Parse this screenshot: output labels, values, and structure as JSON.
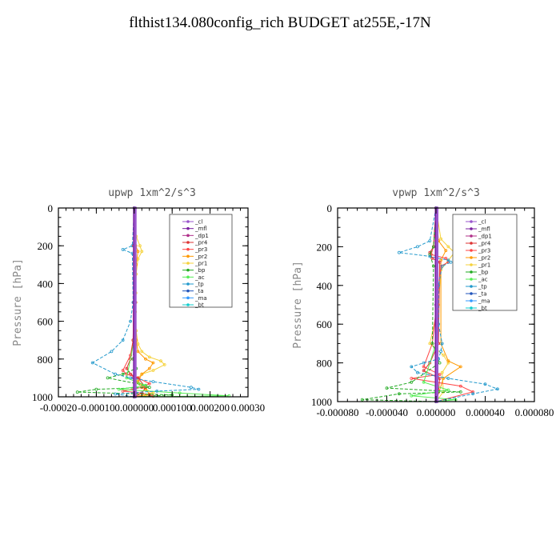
{
  "title": "flthist134.080config_rich  BUDGET at255E,-17N",
  "legend_entries": [
    "_cl",
    "_mfl",
    "_dp1",
    "_pr4",
    "_pr3",
    "_pr2",
    "_pr1",
    "_bp",
    "_ac",
    "_tp",
    "_ta",
    "_ma",
    "_bt"
  ],
  "series_colors": {
    "_cl": "#9955cc",
    "_mfl": "#7a1fa0",
    "_dp1": "#b0308a",
    "_pr4": "#dd3333",
    "_pr3": "#ff4444",
    "_pr2": "#ff9900",
    "_pr1": "#f5d23c",
    "_bp": "#22aa22",
    "_ac": "#55ee55",
    "_tp": "#2299cc",
    "_ta": "#2255bb",
    "_ma": "#3399ff",
    "_bt": "#11cccc"
  },
  "chart_data": [
    {
      "type": "line",
      "title": "upwp   1xm^2/s^3",
      "ylabel": "Pressure [hPa]",
      "xlabel": "",
      "ylim": [
        1000,
        0
      ],
      "xlim": [
        -0.0002,
        0.0003
      ],
      "xticks": [
        -0.0002,
        -0.0001,
        0.0,
        0.0001,
        0.0002,
        0.0003
      ],
      "xtick_labels": [
        "-0.00020",
        "-0.00010",
        "0.000000",
        "0.000100",
        "0.000200",
        "0.00030"
      ],
      "yticks": [
        0,
        200,
        400,
        600,
        800,
        1000
      ],
      "ytick_labels": [
        "0",
        "200",
        "400",
        "600",
        "800",
        "1000"
      ],
      "grid": false,
      "legend": "top-right",
      "series": [
        {
          "name": "_pr1",
          "x": [
            0,
            5e-06,
            1.5e-05,
            2e-05,
            1e-05,
            5e-06,
            4e-06,
            3e-06,
            5e-06,
            1e-05,
            2e-05,
            4e-05,
            7e-05,
            8e-05,
            5e-05,
            2e-05,
            1e-05,
            5e-06,
            2e-05,
            5e-05,
            3e-05,
            0
          ],
          "y": [
            0,
            150,
            200,
            230,
            270,
            350,
            450,
            550,
            650,
            720,
            760,
            790,
            810,
            830,
            860,
            880,
            900,
            920,
            950,
            980,
            995,
            1000
          ]
        },
        {
          "name": "_pr2",
          "x": [
            0,
            4e-06,
            1e-05,
            5e-06,
            4e-06,
            5e-06,
            1e-05,
            3e-05,
            5e-05,
            4e-05,
            2e-05,
            1e-05,
            3e-05,
            4e-05,
            0
          ],
          "y": [
            0,
            200,
            230,
            300,
            500,
            700,
            760,
            800,
            820,
            850,
            880,
            920,
            960,
            985,
            1000
          ]
        },
        {
          "name": "_pr3",
          "x": [
            0,
            -2e-06,
            -2e-06,
            -3e-06,
            -1e-05,
            -3e-05,
            -2e-05,
            1e-05,
            4e-05,
            2e-05,
            -3e-05,
            2e-05,
            4e-05,
            5e-05,
            0
          ],
          "y": [
            0,
            200,
            500,
            700,
            780,
            860,
            880,
            900,
            930,
            950,
            970,
            980,
            990,
            996,
            1000
          ]
        },
        {
          "name": "_pr4",
          "x": [
            0,
            -2e-06,
            -2e-06,
            -3e-06,
            -1e-05,
            -2e-05,
            -1e-05,
            1e-05,
            3e-05,
            2e-05,
            0
          ],
          "y": [
            0,
            200,
            500,
            700,
            800,
            850,
            880,
            900,
            950,
            980,
            1000
          ]
        },
        {
          "name": "_dp1",
          "x": [
            0,
            1e-06,
            1e-06,
            -2e-06,
            5e-06,
            0
          ],
          "y": [
            0,
            300,
            600,
            900,
            980,
            1000
          ]
        },
        {
          "name": "_bp",
          "x": [
            0,
            0,
            0,
            -3e-06,
            5e-06,
            -3e-05,
            -7e-05,
            3e-05,
            4e-05,
            -0.0001,
            -0.00015,
            0.0001,
            0
          ],
          "y": [
            0,
            400,
            700,
            800,
            850,
            880,
            900,
            940,
            950,
            960,
            975,
            990,
            1000
          ]
        },
        {
          "name": "_ac",
          "x": [
            0,
            0,
            -2e-05,
            3e-05,
            -4e-05,
            0.00012,
            0.00025,
            0
          ],
          "y": [
            0,
            700,
            900,
            940,
            960,
            980,
            995,
            1000
          ]
        },
        {
          "name": "_tp",
          "x": [
            0,
            -5e-06,
            -3e-05,
            -5e-06,
            -3e-06,
            -1e-05,
            -3e-05,
            -6e-05,
            -0.00011,
            -5e-05,
            -1e-05,
            5e-05,
            0.00015,
            0.00017,
            6e-05,
            -5e-05,
            0
          ],
          "y": [
            0,
            200,
            220,
            240,
            500,
            600,
            700,
            760,
            820,
            880,
            900,
            920,
            950,
            960,
            970,
            985,
            1000
          ]
        },
        {
          "name": "_mfl",
          "x": [
            0,
            0,
            0
          ],
          "y": [
            0,
            500,
            1000
          ]
        },
        {
          "name": "_cl",
          "x": [
            3e-06,
            3e-06,
            3e-06
          ],
          "y": [
            0,
            500,
            1000
          ]
        }
      ]
    },
    {
      "type": "line",
      "title": "vpwp   1xm^2/s^3",
      "ylabel": "Pressure [hPa]",
      "xlabel": "",
      "ylim": [
        1000,
        0
      ],
      "xlim": [
        -8e-05,
        8e-05
      ],
      "xticks": [
        -8e-05,
        -4e-05,
        0.0,
        4e-05,
        8e-05
      ],
      "xtick_labels": [
        "-0.000080",
        "-0.000040",
        "0.000000",
        "0.000040",
        "0.000080"
      ],
      "yticks": [
        0,
        200,
        400,
        600,
        800,
        1000
      ],
      "ytick_labels": [
        "0",
        "200",
        "400",
        "600",
        "800",
        "1000"
      ],
      "grid": false,
      "legend": "top-right",
      "series": [
        {
          "name": "_pr1",
          "x": [
            0,
            4e-06,
            1e-05,
            1.5e-05,
            1e-05,
            4e-06,
            2e-06,
            -5e-06,
            6e-06,
            1e-05,
            5e-06,
            6e-06,
            0
          ],
          "y": [
            0,
            160,
            200,
            230,
            270,
            320,
            500,
            700,
            760,
            800,
            850,
            950,
            1000
          ]
        },
        {
          "name": "_pr2",
          "x": [
            0,
            2e-06,
            8e-06,
            4e-06,
            4e-06,
            1e-05,
            2e-05,
            6e-06,
            0
          ],
          "y": [
            0,
            170,
            220,
            270,
            700,
            790,
            820,
            880,
            1000
          ]
        },
        {
          "name": "_pr3",
          "x": [
            0,
            -2e-06,
            -4e-06,
            8e-06,
            1e-05,
            4e-06,
            -3e-06,
            -1e-05,
            3e-06,
            -2e-05,
            2e-05,
            3e-05,
            0
          ],
          "y": [
            0,
            200,
            240,
            260,
            280,
            300,
            700,
            820,
            860,
            880,
            920,
            950,
            1000
          ]
        },
        {
          "name": "_pr4",
          "x": [
            0,
            -2e-06,
            -5e-06,
            -3e-06,
            3e-06,
            2e-06,
            -5e-06,
            -1e-05,
            3e-06,
            2e-06,
            0
          ],
          "y": [
            0,
            200,
            230,
            260,
            280,
            700,
            800,
            840,
            880,
            950,
            1000
          ]
        },
        {
          "name": "_dp1",
          "x": [
            0,
            0,
            0
          ],
          "y": [
            0,
            500,
            1000
          ]
        },
        {
          "name": "_bp",
          "x": [
            0,
            -2e-06,
            -5e-06,
            -2e-06,
            -3e-06,
            3e-06,
            -2e-05,
            -4e-05,
            2e-05,
            -3e-05,
            -6e-05,
            0
          ],
          "y": [
            0,
            200,
            240,
            300,
            700,
            800,
            900,
            930,
            950,
            960,
            990,
            1000
          ]
        },
        {
          "name": "_ac",
          "x": [
            0,
            0,
            -1e-05,
            1e-05,
            -2e-05,
            1.6e-05,
            0
          ],
          "y": [
            0,
            700,
            900,
            940,
            970,
            990,
            1000
          ]
        },
        {
          "name": "_tp",
          "x": [
            0,
            -5e-06,
            -1.5e-05,
            -3e-05,
            -5e-06,
            1e-05,
            1.2e-05,
            5e-06,
            2e-06,
            2e-06,
            5e-06,
            4e-06,
            2e-06,
            -1e-05,
            -2e-05,
            -1.5e-05,
            1e-05,
            4e-05,
            5e-05,
            3e-05,
            0
          ],
          "y": [
            0,
            170,
            200,
            230,
            250,
            270,
            280,
            300,
            400,
            600,
            700,
            740,
            780,
            800,
            820,
            850,
            880,
            910,
            935,
            960,
            1000
          ]
        },
        {
          "name": "_mfl",
          "x": [
            0,
            0,
            0
          ],
          "y": [
            0,
            500,
            1000
          ]
        },
        {
          "name": "_cl",
          "x": [
            1e-06,
            1e-06,
            1e-06
          ],
          "y": [
            0,
            500,
            1000
          ]
        }
      ]
    }
  ]
}
